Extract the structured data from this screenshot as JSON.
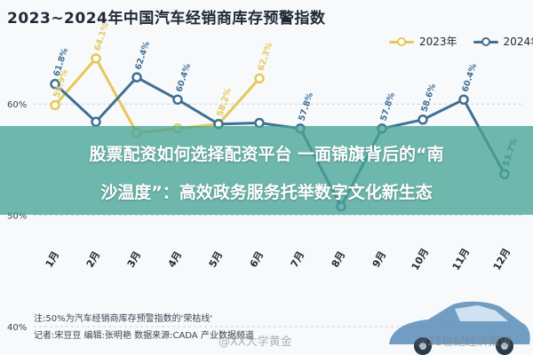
{
  "title": "2023~2024年中国汽车经销商库存预警指数",
  "legend": {
    "series_2023": "2023年",
    "series_2024": "2024年"
  },
  "headline": {
    "line1": "股票配资如何选择配资平台 一面锦旗背后的“南",
    "line2": "沙温度”：高效政务服务托举数字文化新生态"
  },
  "footer": {
    "note": "注:50%为汽车经销商库存预警指数的'荣枯线'",
    "credits": "记者:宋豆豆  编辑:张明艳  数据来源:CADA 产业数据频道"
  },
  "watermarks": [
    "@XX大学黄金",
    "@21世纪经济报道"
  ],
  "colors": {
    "series_2023": "#e6c858",
    "series_2024": "#3f6f95",
    "grid": "#c9d2db",
    "band": "#46a496"
  },
  "chart_data": {
    "type": "line",
    "title": "2023~2024年中国汽车经销商库存预警指数",
    "categories": [
      "1月",
      "2月",
      "3月",
      "4月",
      "5月",
      "6月",
      "7月",
      "8月",
      "9月",
      "10月",
      "11月",
      "12月"
    ],
    "y_ticks": [
      "40%",
      "50%",
      "60%"
    ],
    "ylim": [
      40,
      66
    ],
    "legend_position": "top-right",
    "series": [
      {
        "name": "2023年",
        "values": [
          59.9,
          64.1,
          57.4,
          57.8,
          58.2,
          62.3,
          null,
          null,
          null,
          null,
          null,
          null
        ],
        "labels": [
          "59.9%",
          "64.1%",
          "",
          "",
          "58.2%",
          "62.3%",
          "",
          "",
          "",
          "",
          "",
          ""
        ]
      },
      {
        "name": "2024年",
        "values": [
          61.8,
          58.4,
          62.4,
          60.4,
          58.2,
          58.3,
          57.8,
          50.8,
          57.8,
          58.6,
          60.4,
          53.7
        ],
        "labels": [
          "61.8%",
          "",
          "62.4%",
          "60.4%",
          "",
          "",
          "57.8%",
          "",
          "57.8%",
          "58.6%",
          "60.4%",
          "53.7%"
        ]
      }
    ]
  }
}
